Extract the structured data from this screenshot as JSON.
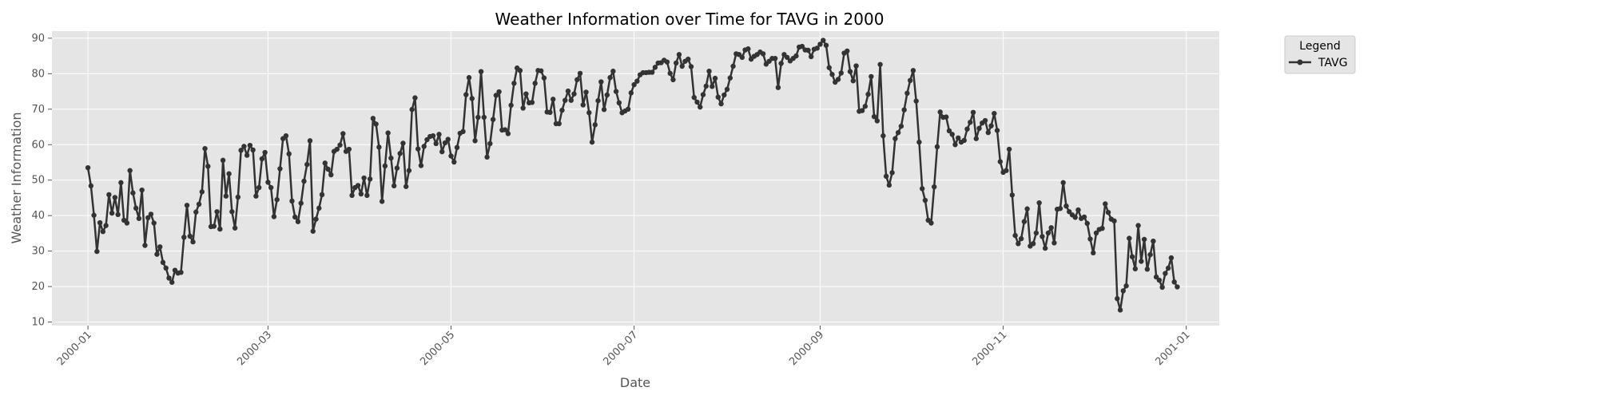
{
  "chart_data": {
    "type": "line",
    "title": "Weather Information over Time for TAVG in 2000",
    "xlabel": "Date",
    "ylabel": "Weather Information",
    "xlim": [
      "1999-12-20",
      "2001-01-12"
    ],
    "ylim": [
      9,
      92
    ],
    "x_ticks": [
      "2000-01",
      "2000-03",
      "2000-05",
      "2000-07",
      "2000-09",
      "2000-11",
      "2001-01"
    ],
    "y_ticks": [
      10,
      20,
      30,
      40,
      50,
      60,
      70,
      80,
      90
    ],
    "grid": true,
    "legend": {
      "title": "Legend",
      "placement": "outside-top-right"
    },
    "series": [
      {
        "name": "TAVG",
        "color": "#333333",
        "start_date": "2000-01-01",
        "values": [
          53.5,
          48.4,
          40.1,
          29.9,
          38.0,
          35.5,
          37.2,
          45.9,
          40.7,
          45.1,
          40.3,
          49.3,
          38.7,
          37.9,
          52.7,
          46.4,
          42.1,
          39.2,
          47.2,
          31.6,
          39.4,
          40.4,
          37.9,
          29.1,
          31.2,
          26.8,
          25.2,
          22.4,
          21.2,
          24.6,
          23.8,
          24.0,
          33.9,
          42.9,
          34.2,
          32.6,
          41.0,
          43.2,
          46.7,
          58.9,
          53.9,
          36.9,
          37.0,
          41.1,
          36.2,
          55.6,
          45.5,
          51.8,
          41.1,
          36.5,
          45.2,
          58.4,
          59.5,
          57.0,
          59.8,
          58.5,
          45.5,
          47.9,
          56.0,
          57.8,
          49.4,
          47.9,
          39.7,
          44.5,
          53.2,
          61.7,
          62.5,
          57.4,
          44.1,
          39.6,
          38.3,
          43.5,
          49.7,
          54.4,
          61.1,
          35.6,
          39.0,
          42.1,
          45.9,
          54.8,
          53.1,
          51.5,
          58.1,
          58.7,
          59.9,
          63.1,
          58.1,
          58.7,
          45.7,
          47.9,
          48.5,
          46.1,
          50.6,
          45.7,
          50.3,
          67.4,
          65.8,
          59.3,
          44.0,
          54.0,
          63.3,
          56.2,
          48.4,
          53.4,
          57.5,
          60.4,
          48.2,
          52.7,
          69.9,
          73.2,
          58.8,
          54.1,
          59.5,
          61.4,
          62.3,
          62.5,
          60.3,
          62.9,
          58.0,
          60.5,
          61.5,
          56.8,
          55.1,
          59.2,
          63.2,
          63.7,
          74.1,
          78.9,
          73.0,
          61.1,
          67.7,
          80.6,
          67.7,
          56.5,
          60.3,
          67.1,
          73.9,
          74.9,
          64.1,
          64.2,
          63.1,
          71.1,
          77.3,
          81.6,
          80.9,
          70.3,
          74.3,
          71.8,
          71.9,
          77.3,
          80.9,
          80.8,
          78.8,
          69.2,
          69.1,
          72.8,
          65.9,
          65.9,
          69.7,
          72.5,
          75.1,
          72.5,
          74.3,
          78.3,
          80.1,
          71.2,
          74.8,
          69.0,
          60.7,
          65.6,
          72.4,
          77.7,
          69.9,
          74.0,
          78.9,
          80.7,
          75.0,
          71.8,
          69.0,
          69.5,
          70.0,
          74.6,
          76.9,
          77.9,
          79.7,
          80.3,
          80.3,
          80.4,
          80.4,
          81.8,
          83.0,
          83.1,
          83.8,
          83.3,
          80.1,
          78.3,
          83.0,
          85.4,
          82.1,
          83.5,
          84.1,
          82.0,
          73.3,
          72.0,
          70.6,
          74.1,
          76.5,
          80.7,
          76.4,
          78.7,
          73.4,
          71.5,
          74.0,
          75.6,
          78.8,
          82.1,
          85.6,
          85.4,
          84.6,
          86.7,
          87.0,
          84.1,
          84.9,
          85.4,
          86.1,
          85.6,
          82.7,
          83.5,
          84.3,
          84.3,
          76.1,
          82.9,
          85.4,
          84.6,
          83.6,
          84.3,
          85.0,
          87.5,
          87.7,
          86.7,
          86.6,
          84.8,
          86.9,
          87.2,
          88.3,
          89.4,
          88.0,
          81.7,
          79.8,
          77.6,
          78.4,
          80.2,
          85.8,
          86.4,
          80.6,
          78.0,
          82.2,
          69.4,
          69.6,
          70.8,
          74.2,
          79.2,
          67.9,
          66.7,
          82.6,
          62.5,
          51.1,
          48.6,
          52.1,
          61.7,
          63.4,
          65.2,
          69.8,
          74.5,
          78.1,
          80.9,
          72.3,
          60.7,
          47.6,
          44.3,
          38.7,
          37.9,
          48.1,
          59.4,
          69.2,
          67.7,
          67.8,
          63.9,
          62.9,
          60.0,
          61.9,
          60.7,
          61.2,
          64.4,
          66.3,
          69.1,
          61.7,
          64.6,
          66.1,
          66.8,
          63.4,
          65.3,
          68.8,
          64.0,
          55.2,
          52.2,
          52.7,
          58.7,
          45.8,
          34.4,
          32.1,
          33.5,
          38.3,
          41.9,
          31.4,
          32.1,
          35.1,
          43.6,
          34.1,
          30.8,
          35.1,
          36.6,
          32.3,
          41.8,
          42.0,
          49.3,
          42.7,
          41.1,
          40.2,
          39.5,
          41.6,
          39.2,
          39.6,
          37.8,
          33.4,
          29.5,
          35.1,
          36.1,
          36.4,
          43.3,
          40.9,
          39.0,
          38.5,
          16.6,
          13.4,
          18.8,
          20.2,
          33.6,
          28.4,
          25.0,
          37.2,
          27.1,
          33.3,
          24.9,
          29.0,
          32.8,
          22.7,
          21.8,
          19.8,
          23.7,
          25.2,
          28.1,
          21.3,
          19.9
        ]
      }
    ]
  }
}
